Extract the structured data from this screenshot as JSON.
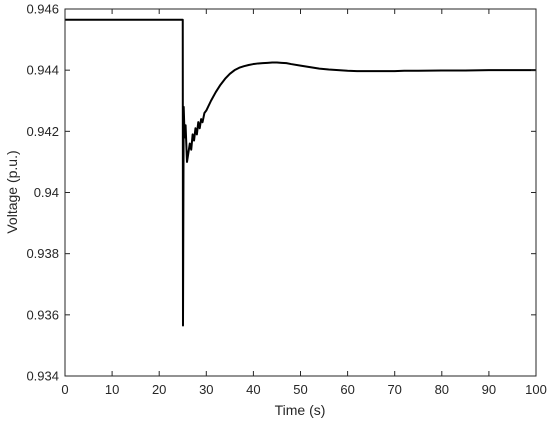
{
  "chart_data": {
    "type": "line",
    "title": "",
    "xlabel": "Time (s)",
    "ylabel": "Voltage (p.u.)",
    "xlim": [
      0,
      100
    ],
    "ylim": [
      0.934,
      0.946
    ],
    "xticks": [
      0,
      10,
      20,
      30,
      40,
      50,
      60,
      70,
      80,
      90,
      100
    ],
    "yticks": [
      0.934,
      0.936,
      0.938,
      0.94,
      0.942,
      0.944,
      0.946
    ],
    "xtick_labels": [
      "0",
      "10",
      "20",
      "30",
      "40",
      "50",
      "60",
      "70",
      "80",
      "90",
      "100"
    ],
    "ytick_labels": [
      "0.934",
      "0.936",
      "0.938",
      "0.94",
      "0.942",
      "0.944",
      "0.946"
    ],
    "grid": false,
    "legend": "none",
    "line_color": "#000000",
    "series": [
      {
        "x": [
          0,
          24.9,
          25.0,
          25.05,
          25.2,
          25.4,
          25.6,
          25.9,
          26.2,
          26.5,
          26.8,
          27.1,
          27.4,
          27.7,
          28.0,
          28.3,
          28.6,
          28.9,
          29.2,
          29.6,
          30.0,
          31,
          32,
          33,
          34,
          35,
          36,
          37,
          38,
          39,
          40,
          41,
          42,
          43,
          44,
          45,
          46,
          47,
          48,
          50,
          52,
          54,
          56,
          58,
          60,
          62,
          64,
          66,
          68,
          70,
          72,
          75,
          80,
          85,
          90,
          95,
          100
        ],
        "y": [
          0.94565,
          0.94565,
          0.94565,
          0.93565,
          0.9428,
          0.9418,
          0.9422,
          0.941,
          0.9413,
          0.9416,
          0.9414,
          0.9419,
          0.9417,
          0.9421,
          0.9419,
          0.9423,
          0.9421,
          0.9424,
          0.9423,
          0.9426,
          0.94268,
          0.943,
          0.94328,
          0.94352,
          0.94372,
          0.94388,
          0.944,
          0.94408,
          0.94413,
          0.94417,
          0.9442,
          0.94422,
          0.94423,
          0.94424,
          0.94425,
          0.94425,
          0.94424,
          0.94423,
          0.9442,
          0.94415,
          0.9441,
          0.94405,
          0.94402,
          0.944,
          0.94398,
          0.94397,
          0.94397,
          0.94397,
          0.94397,
          0.94397,
          0.94398,
          0.94398,
          0.94399,
          0.94399,
          0.944,
          0.944,
          0.944
        ]
      }
    ]
  }
}
